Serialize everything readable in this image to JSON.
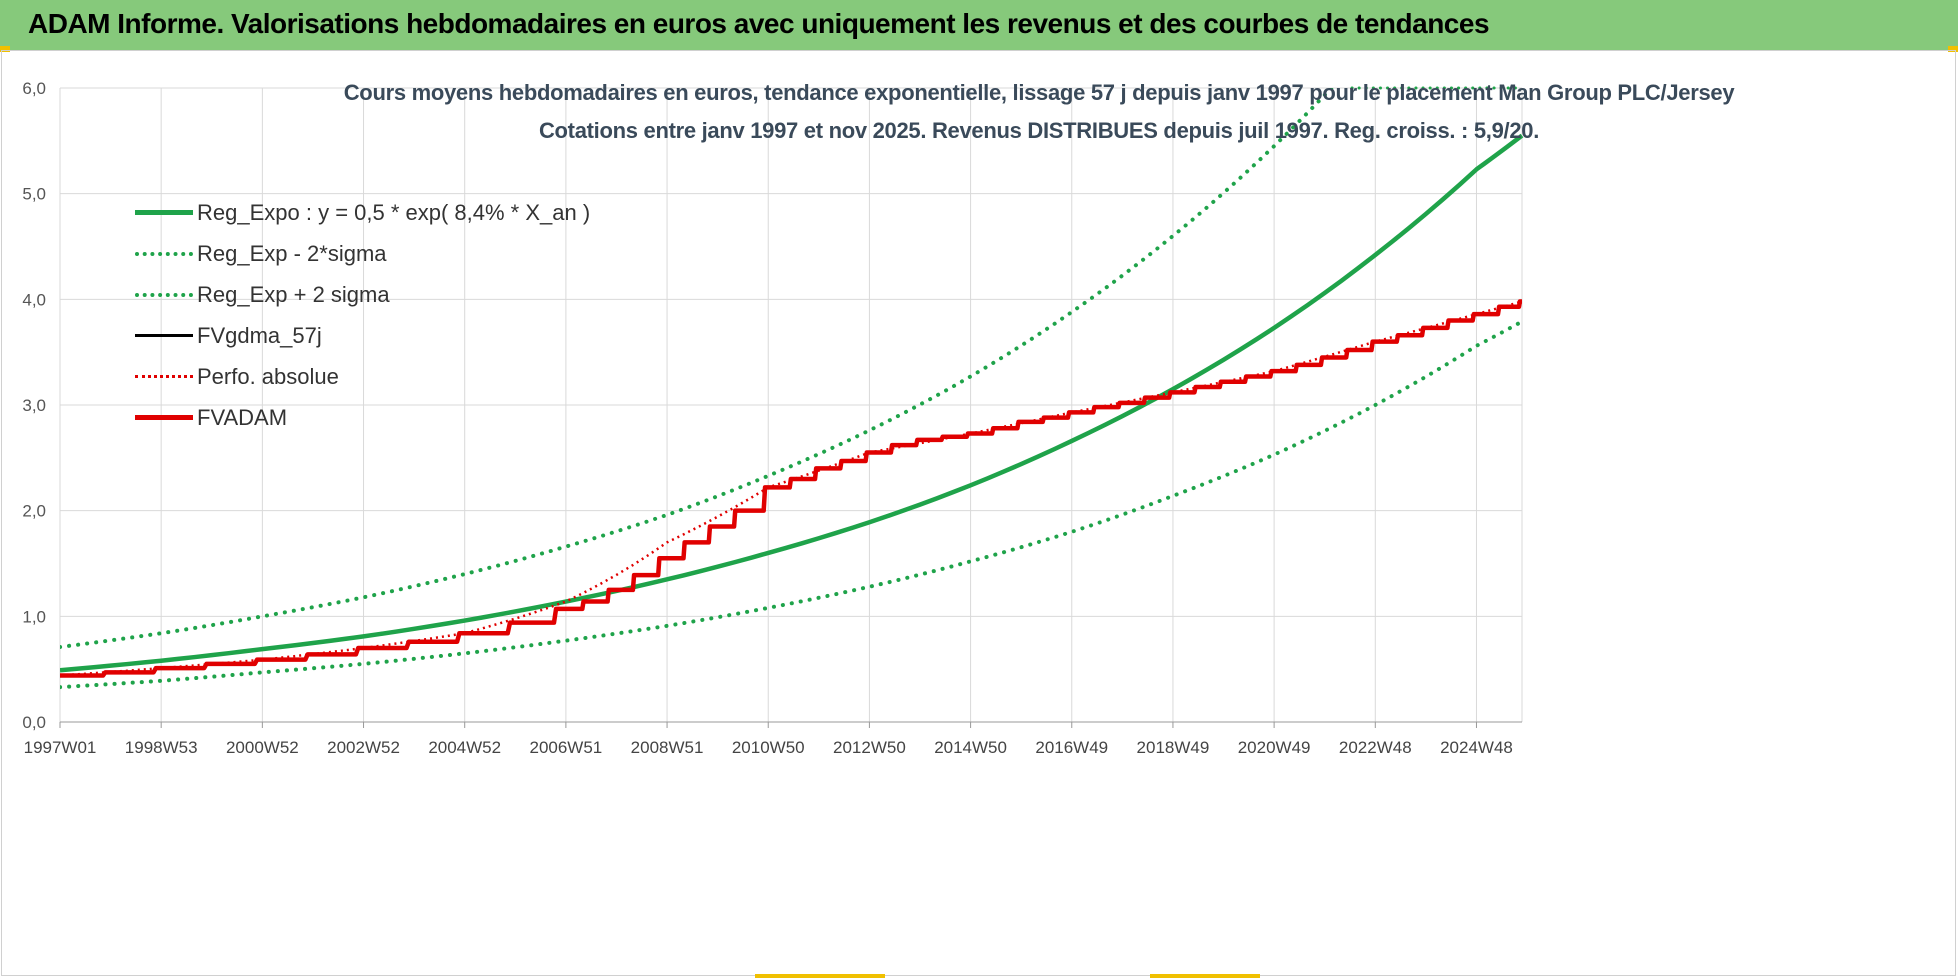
{
  "header": {
    "title": "ADAM Informe. Valorisations hebdomadaires en euros avec uniquement les revenus et des courbes de tendances"
  },
  "colors": {
    "header_bg": "#86c97b",
    "reg_green": "#1fa34a",
    "sigma_green": "#1fa34a",
    "fv_black": "#000000",
    "perfo_red": "#e00000",
    "fvadam_red": "#e00000",
    "grid": "#d9d9d9"
  },
  "chart_data": {
    "type": "line",
    "title": "Cours moyens hebdomadaires en euros, tendance exponentielle, lissage 57 j depuis janv 1997 pour le placement Man Group PLC/Jersey",
    "subtitle": "Cotations entre janv 1997 et nov 2025. Revenus DISTRIBUES depuis juil 1997. Reg. croiss. : 5,9/20.",
    "xlabel": "",
    "ylabel": "",
    "ylim": [
      0,
      6
    ],
    "yticks": [
      "0,0",
      "1,0",
      "2,0",
      "3,0",
      "4,0",
      "5,0",
      "6,0"
    ],
    "x_categories": [
      "1997W01",
      "1998W53",
      "2000W52",
      "2002W52",
      "2004W52",
      "2006W51",
      "2008W51",
      "2010W50",
      "2012W50",
      "2014W50",
      "2016W49",
      "2018W49",
      "2020W49",
      "2022W48",
      "2024W48"
    ],
    "x_year_range": [
      1997.0,
      2025.9
    ],
    "grid": true,
    "legend_position": "top-left",
    "series": [
      {
        "name": "Reg_Expo : y = 0,5 * exp( 8,4% *  X_an )",
        "style": "solid-thick",
        "color": "#1fa34a",
        "x_years": [
          1997,
          1999,
          2001,
          2003,
          2005,
          2007,
          2009,
          2011,
          2013,
          2015,
          2017,
          2019,
          2021,
          2023,
          2025,
          2025.9
        ],
        "values": [
          0.49,
          0.58,
          0.69,
          0.81,
          0.96,
          1.14,
          1.35,
          1.6,
          1.89,
          2.24,
          2.66,
          3.15,
          3.73,
          4.42,
          5.23,
          5.55
        ]
      },
      {
        "name": "Reg_Exp - 2*sigma",
        "style": "dotted",
        "color": "#1fa34a",
        "x_years": [
          1997,
          1999,
          2001,
          2003,
          2005,
          2007,
          2009,
          2011,
          2013,
          2015,
          2017,
          2019,
          2021,
          2023,
          2025,
          2025.9
        ],
        "values": [
          0.33,
          0.39,
          0.47,
          0.55,
          0.65,
          0.77,
          0.91,
          1.08,
          1.28,
          1.52,
          1.8,
          2.14,
          2.53,
          3.0,
          3.56,
          3.79
        ]
      },
      {
        "name": "Reg_Exp + 2 sigma",
        "style": "dotted",
        "color": "#1fa34a",
        "x_years": [
          1997,
          1999,
          2001,
          2003,
          2005,
          2007,
          2009,
          2011,
          2013,
          2015,
          2017,
          2019,
          2021,
          2023,
          2023.6
        ],
        "values": [
          0.71,
          0.84,
          1.0,
          1.18,
          1.4,
          1.66,
          1.96,
          2.33,
          2.76,
          3.27,
          3.88,
          4.6,
          5.45,
          6.46,
          6.8
        ]
      },
      {
        "name": "FVgdma_57j",
        "style": "solid",
        "color": "#000000",
        "x_years": [
          1997,
          1998,
          1999,
          2000,
          2001,
          2002,
          2003,
          2004,
          2005,
          2006,
          2006.9,
          2007.4,
          2007.9,
          2008.4,
          2008.9,
          2009.4,
          2009.9,
          2010.4,
          2011,
          2011.5,
          2012,
          2012.5,
          2013,
          2013.5,
          2014,
          2014.5,
          2015,
          2015.5,
          2016,
          2016.5,
          2017,
          2017.5,
          2018,
          2018.5,
          2019,
          2019.5,
          2020,
          2020.5,
          2021,
          2021.5,
          2022,
          2022.5,
          2023,
          2023.5,
          2024,
          2024.5,
          2025,
          2025.5,
          2025.9
        ],
        "values": [
          0.44,
          0.47,
          0.51,
          0.55,
          0.59,
          0.64,
          0.7,
          0.76,
          0.84,
          0.94,
          1.07,
          1.14,
          1.25,
          1.39,
          1.55,
          1.7,
          1.85,
          2.0,
          2.22,
          2.3,
          2.4,
          2.47,
          2.55,
          2.62,
          2.67,
          2.7,
          2.73,
          2.78,
          2.84,
          2.88,
          2.93,
          2.98,
          3.02,
          3.07,
          3.12,
          3.17,
          3.22,
          3.27,
          3.32,
          3.38,
          3.45,
          3.52,
          3.6,
          3.66,
          3.73,
          3.8,
          3.86,
          3.93,
          3.98
        ]
      },
      {
        "name": "Perfo. absolue",
        "style": "dotted-red",
        "color": "#e00000",
        "x_years": [
          1997,
          1999,
          2001,
          2003,
          2005,
          2007,
          2009,
          2011,
          2013,
          2015,
          2017,
          2019,
          2021,
          2023,
          2025,
          2025.9
        ],
        "values": [
          0.44,
          0.51,
          0.59,
          0.7,
          0.84,
          1.14,
          1.7,
          2.22,
          2.55,
          2.73,
          2.93,
          3.12,
          3.32,
          3.6,
          3.86,
          3.98
        ]
      },
      {
        "name": "FVADAM",
        "style": "solid-thick",
        "color": "#e00000",
        "x_years": [
          1997,
          1998,
          1999,
          2000,
          2001,
          2002,
          2003,
          2004,
          2005,
          2006,
          2006.9,
          2007.4,
          2007.9,
          2008.4,
          2008.9,
          2009.4,
          2009.9,
          2010.4,
          2011,
          2011.5,
          2012,
          2012.5,
          2013,
          2013.5,
          2014,
          2014.5,
          2015,
          2015.5,
          2016,
          2016.5,
          2017,
          2017.5,
          2018,
          2018.5,
          2019,
          2019.5,
          2020,
          2020.5,
          2021,
          2021.5,
          2022,
          2022.5,
          2023,
          2023.5,
          2024,
          2024.5,
          2025,
          2025.5,
          2025.9
        ],
        "values": [
          0.44,
          0.47,
          0.51,
          0.55,
          0.59,
          0.64,
          0.7,
          0.76,
          0.84,
          0.94,
          1.07,
          1.14,
          1.25,
          1.39,
          1.55,
          1.7,
          1.85,
          2.0,
          2.22,
          2.3,
          2.4,
          2.47,
          2.55,
          2.62,
          2.67,
          2.7,
          2.73,
          2.78,
          2.84,
          2.88,
          2.93,
          2.98,
          3.02,
          3.07,
          3.12,
          3.17,
          3.22,
          3.27,
          3.32,
          3.38,
          3.45,
          3.52,
          3.6,
          3.66,
          3.73,
          3.8,
          3.86,
          3.93,
          3.98
        ]
      }
    ]
  }
}
